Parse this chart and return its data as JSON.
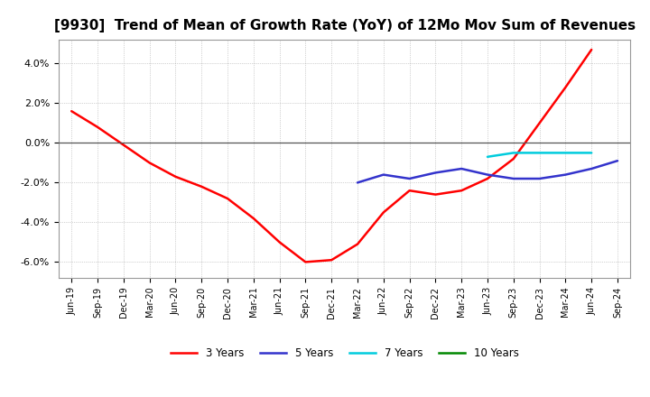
{
  "title": "[9930]  Trend of Mean of Growth Rate (YoY) of 12Mo Mov Sum of Revenues",
  "title_fontsize": 11,
  "background_color": "#ffffff",
  "grid_color": "#aaaaaa",
  "ylim": [
    -0.068,
    0.052
  ],
  "yticks": [
    -0.06,
    -0.04,
    -0.02,
    0.0,
    0.02,
    0.04
  ],
  "ytick_labels": [
    "-6.0%",
    "-4.0%",
    "-2.0%",
    "0.0%",
    "2.0%",
    "4.0%"
  ],
  "x_labels": [
    "Jun-19",
    "Sep-19",
    "Dec-19",
    "Mar-20",
    "Jun-20",
    "Sep-20",
    "Dec-20",
    "Mar-21",
    "Jun-21",
    "Sep-21",
    "Dec-21",
    "Mar-22",
    "Jun-22",
    "Sep-22",
    "Dec-22",
    "Mar-23",
    "Jun-23",
    "Sep-23",
    "Dec-23",
    "Mar-24",
    "Jun-24",
    "Sep-24"
  ],
  "series": {
    "3 Years": {
      "color": "#ff0000",
      "linewidth": 1.8,
      "data": [
        0.016,
        0.008,
        -0.001,
        -0.01,
        -0.017,
        -0.022,
        -0.028,
        -0.038,
        -0.05,
        -0.06,
        -0.059,
        -0.051,
        -0.035,
        -0.024,
        -0.026,
        -0.024,
        -0.018,
        -0.008,
        0.01,
        0.028,
        0.047,
        null
      ]
    },
    "5 Years": {
      "color": "#3333cc",
      "linewidth": 1.8,
      "data": [
        null,
        null,
        null,
        null,
        null,
        null,
        null,
        null,
        null,
        null,
        null,
        -0.02,
        -0.016,
        -0.018,
        -0.015,
        -0.013,
        -0.016,
        -0.018,
        -0.018,
        -0.016,
        -0.013,
        -0.009
      ]
    },
    "7 Years": {
      "color": "#00ccdd",
      "linewidth": 1.8,
      "data": [
        null,
        null,
        null,
        null,
        null,
        null,
        null,
        null,
        null,
        null,
        null,
        null,
        null,
        null,
        null,
        null,
        -0.007,
        -0.005,
        -0.005,
        -0.005,
        -0.005,
        null
      ]
    },
    "10 Years": {
      "color": "#008800",
      "linewidth": 1.8,
      "data": [
        null,
        null,
        null,
        null,
        null,
        null,
        null,
        null,
        null,
        null,
        null,
        null,
        null,
        null,
        null,
        null,
        null,
        null,
        null,
        null,
        null,
        null
      ]
    }
  },
  "legend_order": [
    "3 Years",
    "5 Years",
    "7 Years",
    "10 Years"
  ]
}
